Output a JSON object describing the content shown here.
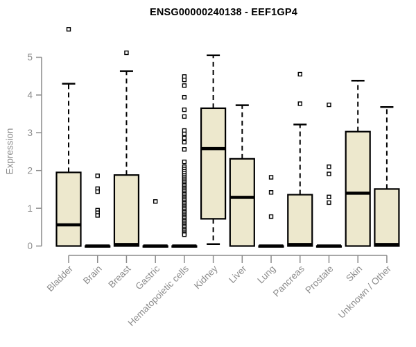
{
  "chart_data": {
    "type": "boxplot",
    "title": "ENSG00000240138 - EEF1GP4",
    "ylabel": "Expression",
    "xlabel": "",
    "ylim": [
      0,
      5
    ],
    "yticks": [
      0,
      1,
      2,
      3,
      4,
      5
    ],
    "grid": false,
    "legend": "none",
    "colors": {
      "box_fill": "#EDE8CD",
      "box_stroke": "#000000",
      "median": "#000000",
      "whisker": "#000000",
      "outlier": "#000000",
      "axis": "#8A8A8A",
      "tick_label": "#8C8C8C",
      "title": "#000000",
      "background": "#FFFFFF"
    },
    "categories": [
      "Bladder",
      "Brain",
      "Breast",
      "Gastric",
      "Hematopoietic cells",
      "Kidney",
      "Liver",
      "Lung",
      "Pancreas",
      "Prostate",
      "Skin",
      "Unknown / Other"
    ],
    "series": [
      {
        "category": "Bladder",
        "whisker_low": 0,
        "q1": 0,
        "median": 0.56,
        "q3": 1.95,
        "whisker_high": 4.3,
        "outliers": [
          5.74
        ]
      },
      {
        "category": "Brain",
        "whisker_low": 0,
        "q1": 0,
        "median": 0,
        "q3": 0,
        "whisker_high": 0,
        "outliers": [
          1.86,
          1.52,
          1.44,
          0.95,
          0.88,
          0.81
        ]
      },
      {
        "category": "Breast",
        "whisker_low": 0,
        "q1": 0,
        "median": 0.04,
        "q3": 1.88,
        "whisker_high": 4.63,
        "outliers": [
          5.12
        ]
      },
      {
        "category": "Gastric",
        "whisker_low": 0,
        "q1": 0,
        "median": 0,
        "q3": 0,
        "whisker_high": 0,
        "outliers": [
          1.18
        ]
      },
      {
        "category": "Hematopoietic cells",
        "whisker_low": 0,
        "q1": 0,
        "median": 0,
        "q3": 0,
        "whisker_high": 0,
        "outliers": [
          4.49,
          4.4,
          4.25,
          3.94,
          3.61,
          3.43,
          3.06,
          2.97,
          2.86,
          2.75,
          2.56,
          2.23,
          2.1,
          2.04,
          1.98,
          1.93,
          1.88,
          1.83,
          1.78,
          1.73,
          1.69,
          1.65,
          1.61,
          1.57,
          1.53,
          1.49,
          1.45,
          1.41,
          1.37,
          1.33,
          1.29,
          1.25,
          1.21,
          1.17,
          1.13,
          1.09,
          1.05,
          1.01,
          0.97,
          0.93,
          0.89,
          0.85,
          0.81,
          0.77,
          0.73,
          0.69,
          0.65,
          0.61,
          0.57,
          0.53,
          0.49,
          0.45,
          0.41,
          0.37,
          0.33,
          0.3
        ]
      },
      {
        "category": "Kidney",
        "whisker_low": 0.05,
        "q1": 0.72,
        "median": 2.58,
        "q3": 3.65,
        "whisker_high": 5.05,
        "outliers": []
      },
      {
        "category": "Liver",
        "whisker_low": 0,
        "q1": 0,
        "median": 1.29,
        "q3": 2.31,
        "whisker_high": 3.73,
        "outliers": []
      },
      {
        "category": "Lung",
        "whisker_low": 0,
        "q1": 0,
        "median": 0,
        "q3": 0,
        "whisker_high": 0,
        "outliers": [
          1.82,
          1.42,
          0.78
        ]
      },
      {
        "category": "Pancreas",
        "whisker_low": 0,
        "q1": 0,
        "median": 0.04,
        "q3": 1.36,
        "whisker_high": 3.22,
        "outliers": [
          4.55,
          3.77
        ]
      },
      {
        "category": "Prostate",
        "whisker_low": 0,
        "q1": 0,
        "median": 0,
        "q3": 0,
        "whisker_high": 0,
        "outliers": [
          3.74,
          2.1,
          1.91,
          1.3,
          1.15
        ]
      },
      {
        "category": "Skin",
        "whisker_low": 0,
        "q1": 0,
        "median": 1.4,
        "q3": 3.03,
        "whisker_high": 4.38,
        "outliers": []
      },
      {
        "category": "Unknown / Other",
        "whisker_low": 0,
        "q1": 0,
        "median": 0.04,
        "q3": 1.51,
        "whisker_high": 3.68,
        "outliers": []
      }
    ]
  }
}
